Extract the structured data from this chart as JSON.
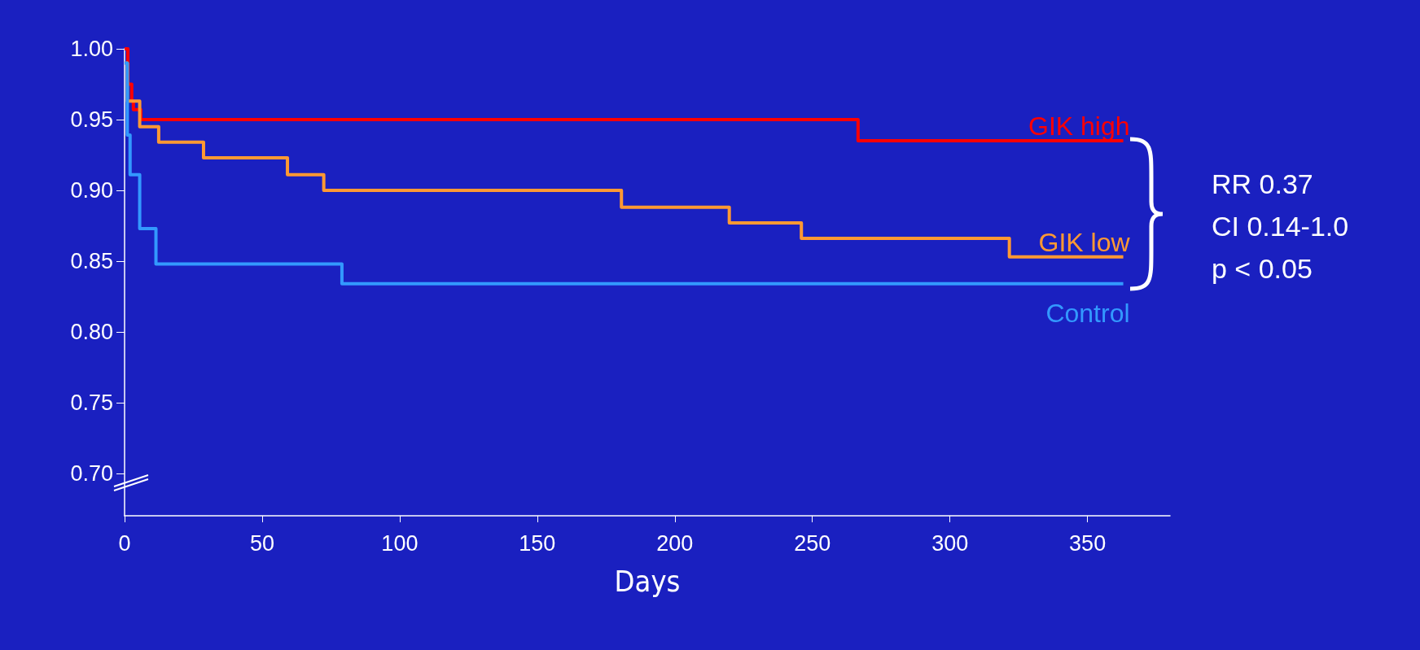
{
  "chart_data": {
    "type": "step",
    "xlabel": "Days",
    "xlim": [
      0,
      380
    ],
    "xticks": [
      0,
      50,
      100,
      150,
      200,
      250,
      300,
      350
    ],
    "ylim": [
      0.67,
      1.0
    ],
    "yticks": [
      {
        "value": 0.7,
        "label": "0.70"
      },
      0.75,
      {
        "value": 0.8,
        "label": "0.80"
      },
      0.85,
      {
        "value": 0.9,
        "label": "0.90"
      },
      0.95,
      {
        "value": 1.0,
        "label": "1.00"
      }
    ],
    "grid": false,
    "legend": false,
    "marker": "none",
    "line_style": "solid",
    "series": [
      {
        "name": "GIK high",
        "color": "#ff0000",
        "x": [
          0,
          1.2,
          2.6,
          3.2,
          5.9,
          266.6,
          363
        ],
        "values": [
          1.0,
          0.975,
          0.963,
          0.957,
          0.95,
          0.935,
          0.935
        ]
      },
      {
        "name": "GIK low",
        "color": "#ff9933",
        "x": [
          0,
          1,
          5.5,
          12.4,
          28.7,
          59.2,
          72.4,
          180.6,
          219.8,
          246,
          321.6,
          363
        ],
        "values": [
          0.99,
          0.963,
          0.945,
          0.934,
          0.923,
          0.911,
          0.9,
          0.888,
          0.877,
          0.866,
          0.853,
          0.853
        ]
      },
      {
        "name": "Control",
        "color": "#3399ff",
        "x": [
          0,
          1,
          2,
          5.5,
          11.4,
          79,
          363
        ],
        "values": [
          0.99,
          0.939,
          0.911,
          0.873,
          0.848,
          0.834,
          0.834
        ]
      }
    ],
    "annotations": [
      "RR 0.37",
      "CI 0.14-1.0",
      "p < 0.05"
    ]
  }
}
